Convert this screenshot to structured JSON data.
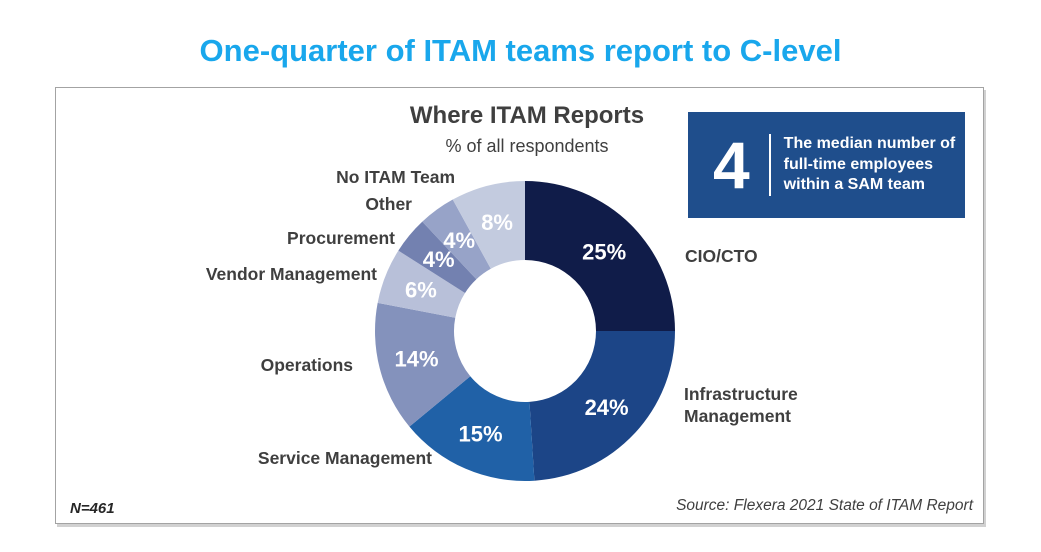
{
  "page_title": "One-quarter of ITAM teams report to C-level",
  "title_color": "#19A7EC",
  "panel": {
    "note_left": "N=461",
    "source": "Source: Flexera 2021 State of ITAM Report"
  },
  "callout": {
    "number": "4",
    "text": "The median number of full-time employees within a SAM team",
    "bg_color": "#1F4E8C",
    "text_color": "#FFFFFF"
  },
  "chart_data": {
    "type": "pie",
    "variant": "donut",
    "title": "Where ITAM Reports",
    "subtitle": "% of all respondents",
    "start_position": "12-o-clock",
    "direction": "clockwise",
    "categories": [
      "CIO/CTO",
      "Infrastructure Management",
      "Service Management",
      "Operations",
      "Vendor Management",
      "Procurement",
      "Other",
      "No ITAM Team"
    ],
    "values": [
      25,
      24,
      15,
      14,
      6,
      4,
      4,
      8
    ],
    "value_labels": [
      "25%",
      "24%",
      "15%",
      "14%",
      "6%",
      "4%",
      "4%",
      "8%"
    ],
    "colors": [
      "#101C49",
      "#1C4587",
      "#2061A7",
      "#8492BC",
      "#B8C0D9",
      "#7381B0",
      "#97A3C8",
      "#C3CBDF"
    ],
    "value_label_color": "#FFFFFF",
    "legend_position": "around-slices"
  }
}
